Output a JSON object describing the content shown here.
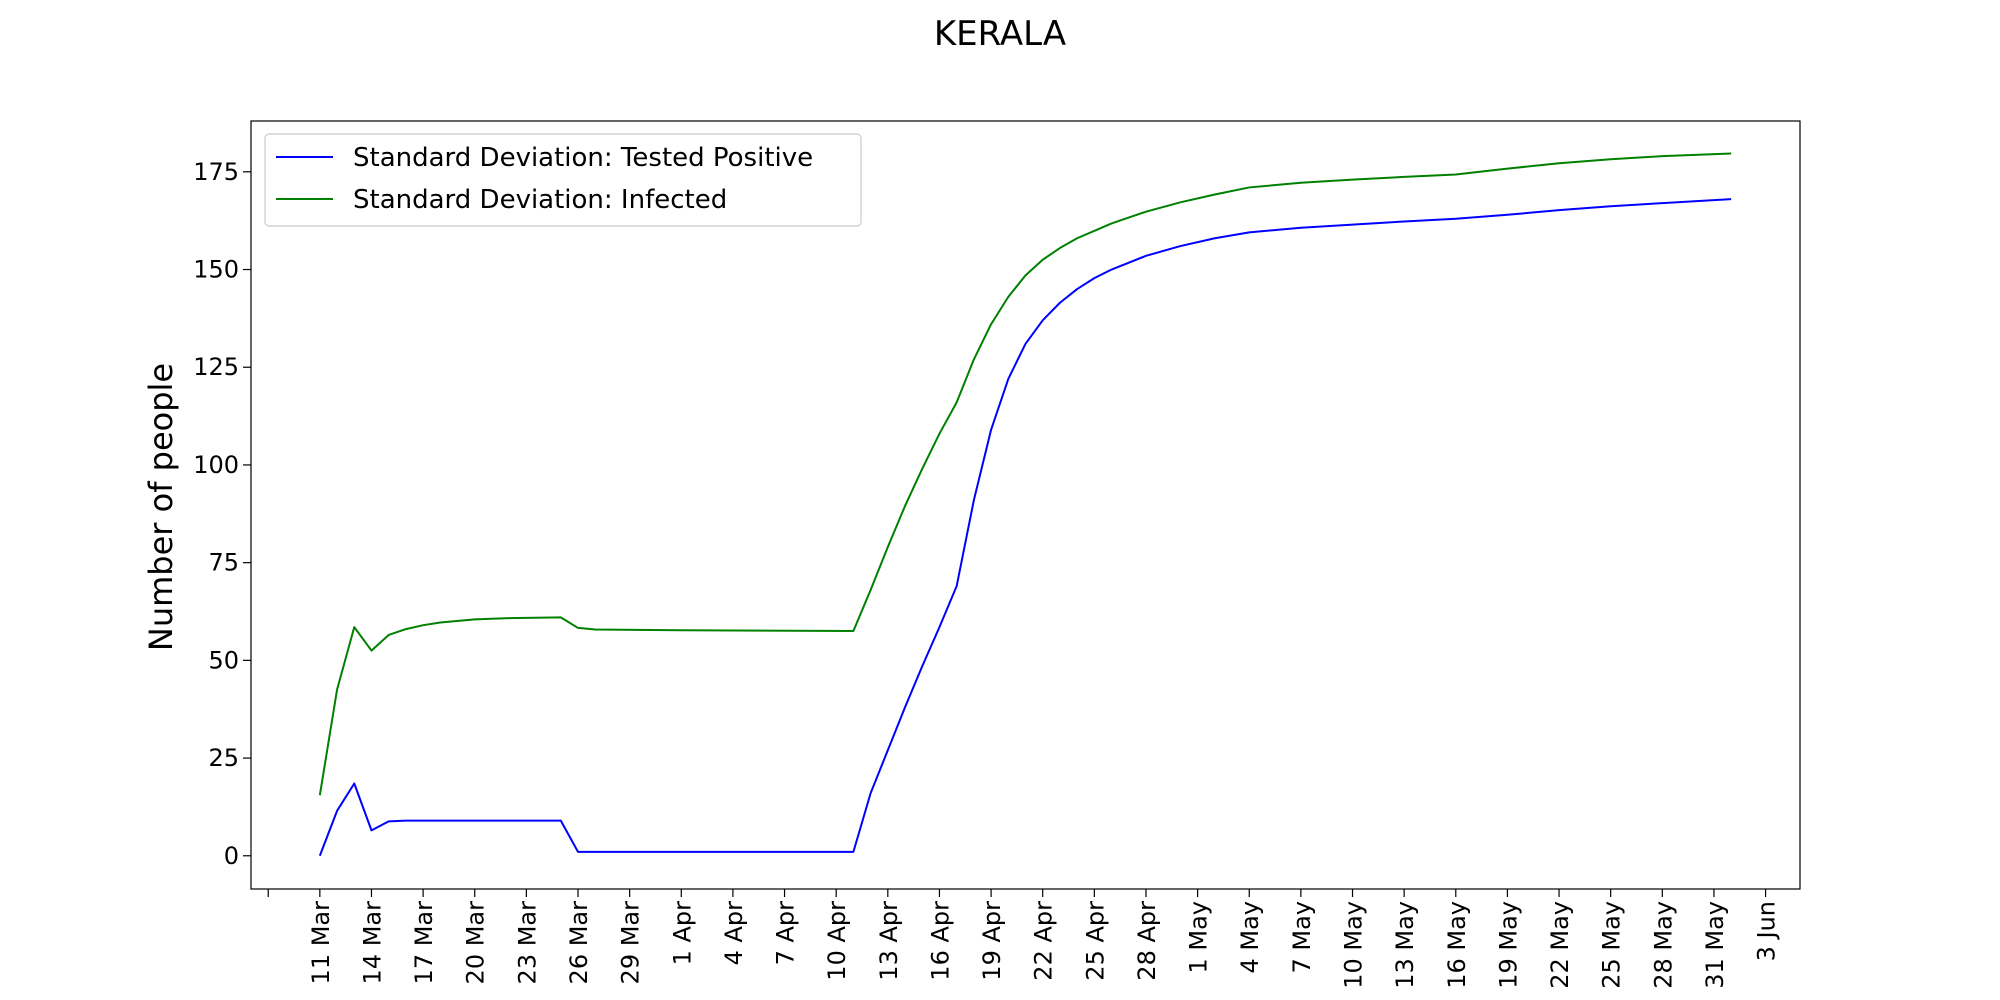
{
  "chart_data": {
    "type": "line",
    "title": "KERALA",
    "xlabel": "",
    "ylabel": "Number of people",
    "x_ticks": [
      "11 Mar",
      "14 Mar",
      "17 Mar",
      "20 Mar",
      "23 Mar",
      "26 Mar",
      "29 Mar",
      "1 Apr",
      "4 Apr",
      "7 Apr",
      "10 Apr",
      "13 Apr",
      "16 Apr",
      "19 Apr",
      "22 Apr",
      "25 Apr",
      "28 Apr",
      "1 May",
      "4 May",
      "7 May",
      "10 May",
      "13 May",
      "16 May",
      "19 May",
      "22 May",
      "25 May",
      "28 May",
      "31 May",
      "3 Jun"
    ],
    "y_ticks": [
      0,
      25,
      50,
      75,
      100,
      125,
      150,
      175
    ],
    "ylim": [
      -8.5,
      188
    ],
    "xlim": [
      "2020-03-07",
      "2020-06-05"
    ],
    "grid": false,
    "legend_position": "top-left",
    "series": [
      {
        "name": "Standard Deviation: Tested Positive",
        "color": "#0000ff",
        "points": [
          [
            "2020-03-11",
            0
          ],
          [
            "2020-03-12",
            11.5
          ],
          [
            "2020-03-13",
            18.5
          ],
          [
            "2020-03-14",
            6.5
          ],
          [
            "2020-03-15",
            8.8
          ],
          [
            "2020-03-16",
            9
          ],
          [
            "2020-03-25",
            9
          ],
          [
            "2020-03-26",
            1
          ],
          [
            "2020-04-11",
            1
          ],
          [
            "2020-04-12",
            16
          ],
          [
            "2020-04-13",
            27
          ],
          [
            "2020-04-14",
            38
          ],
          [
            "2020-04-15",
            48.5
          ],
          [
            "2020-04-16",
            58.5
          ],
          [
            "2020-04-17",
            69
          ],
          [
            "2020-04-18",
            91
          ],
          [
            "2020-04-19",
            109
          ],
          [
            "2020-04-20",
            122
          ],
          [
            "2020-04-21",
            131
          ],
          [
            "2020-04-22",
            137
          ],
          [
            "2020-04-23",
            141.5
          ],
          [
            "2020-04-24",
            145
          ],
          [
            "2020-04-25",
            147.8
          ],
          [
            "2020-04-26",
            150
          ],
          [
            "2020-04-28",
            153.5
          ],
          [
            "2020-04-30",
            156
          ],
          [
            "2020-05-02",
            158
          ],
          [
            "2020-05-04",
            159.5
          ],
          [
            "2020-05-07",
            160.7
          ],
          [
            "2020-05-10",
            161.5
          ],
          [
            "2020-05-13",
            162.3
          ],
          [
            "2020-05-16",
            163
          ],
          [
            "2020-05-19",
            164
          ],
          [
            "2020-05-22",
            165.2
          ],
          [
            "2020-05-25",
            166.2
          ],
          [
            "2020-05-28",
            167
          ],
          [
            "2020-06-01",
            168
          ]
        ]
      },
      {
        "name": "Standard Deviation: Infected",
        "color": "#008000",
        "points": [
          [
            "2020-03-11",
            15.5
          ],
          [
            "2020-03-12",
            42.5
          ],
          [
            "2020-03-13",
            58.5
          ],
          [
            "2020-03-14",
            52.5
          ],
          [
            "2020-03-15",
            56.5
          ],
          [
            "2020-03-16",
            58
          ],
          [
            "2020-03-17",
            59
          ],
          [
            "2020-03-18",
            59.7
          ],
          [
            "2020-03-20",
            60.5
          ],
          [
            "2020-03-22",
            60.8
          ],
          [
            "2020-03-25",
            61
          ],
          [
            "2020-03-26",
            58.3
          ],
          [
            "2020-03-27",
            57.9
          ],
          [
            "2020-04-01",
            57.7
          ],
          [
            "2020-04-11",
            57.5
          ],
          [
            "2020-04-12",
            68
          ],
          [
            "2020-04-13",
            79
          ],
          [
            "2020-04-14",
            89.5
          ],
          [
            "2020-04-15",
            99
          ],
          [
            "2020-04-16",
            108
          ],
          [
            "2020-04-17",
            116
          ],
          [
            "2020-04-18",
            127
          ],
          [
            "2020-04-19",
            136
          ],
          [
            "2020-04-20",
            143
          ],
          [
            "2020-04-21",
            148.5
          ],
          [
            "2020-04-22",
            152.5
          ],
          [
            "2020-04-23",
            155.5
          ],
          [
            "2020-04-24",
            158
          ],
          [
            "2020-04-26",
            161.8
          ],
          [
            "2020-04-28",
            164.8
          ],
          [
            "2020-04-30",
            167.2
          ],
          [
            "2020-05-02",
            169.2
          ],
          [
            "2020-05-04",
            171
          ],
          [
            "2020-05-07",
            172.2
          ],
          [
            "2020-05-10",
            173
          ],
          [
            "2020-05-13",
            173.7
          ],
          [
            "2020-05-16",
            174.3
          ],
          [
            "2020-05-19",
            175.8
          ],
          [
            "2020-05-22",
            177.2
          ],
          [
            "2020-05-25",
            178.2
          ],
          [
            "2020-05-28",
            179
          ],
          [
            "2020-06-01",
            179.7
          ]
        ]
      }
    ]
  }
}
